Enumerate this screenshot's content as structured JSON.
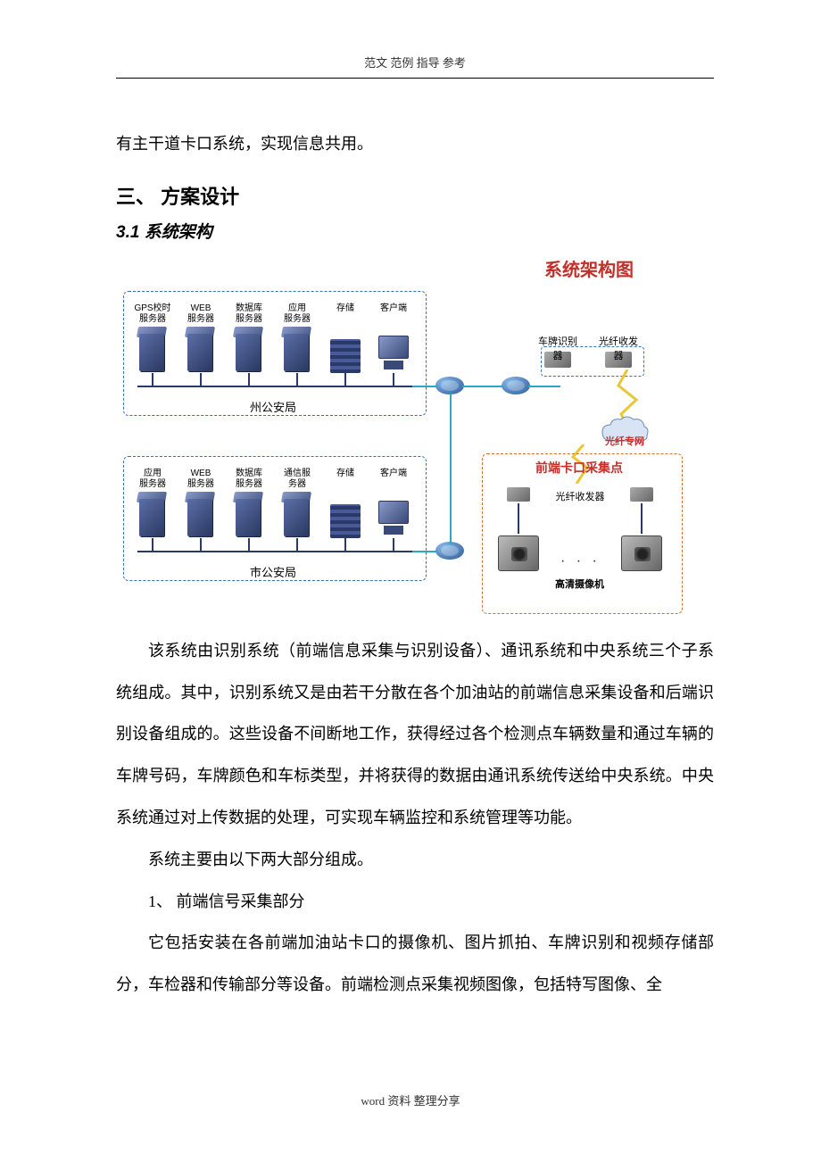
{
  "header": {
    "text": "范文 范例    指导 参考"
  },
  "footer": {
    "text": "word 资料  整理分享"
  },
  "content": {
    "lead_para": "有主干道卡口系统，实现信息共用。",
    "h1": "三、  方案设计",
    "h2": "3.1  系统架构",
    "para1": "该系统由识别系统（前端信息采集与识别设备）、通讯系统和中央系统三个子系统组成。其中，识别系统又是由若干分散在各个加油站的前端信息采集设备和后端识别设备组成的。这些设备不间断地工作，获得经过各个检测点车辆数量和通过车辆的车牌号码，车牌颜色和车标类型，并将获得的数据由通讯系统传送给中央系统。中央系统通过对上传数据的处理，可实现车辆监控和系统管理等功能。",
    "para2": "系统主要由以下两大部分组成。",
    "list1": "1、 前端信号采集部分",
    "para3": "它包括安装在各前端加油站卡口的摄像机、图片抓拍、车牌识别和视频存储部分，车检器和传输部分等设备。前端检测点采集视频图像，包括特写图像、全"
  },
  "diagram": {
    "title": "系统架构图",
    "zhou": {
      "label": "州公安局",
      "servers": [
        {
          "label": "GPS校时\n服务器"
        },
        {
          "label": "WEB\n服务器"
        },
        {
          "label": "数据库\n服务器"
        },
        {
          "label": "应用\n服务器"
        },
        {
          "label": "存储"
        },
        {
          "label": "客户端"
        }
      ]
    },
    "shi": {
      "label": "市公安局",
      "servers": [
        {
          "label": "应用\n服务器"
        },
        {
          "label": "WEB\n服务器"
        },
        {
          "label": "数据库\n服务器"
        },
        {
          "label": "通信服\n务器"
        },
        {
          "label": "存储"
        },
        {
          "label": "客户端"
        }
      ]
    },
    "lp_box": "车牌识别器",
    "fiber_tx": "光纤收发器",
    "fiber_net": "光纤专网",
    "front_label": "前端卡口采集点",
    "fiber_rx": "光纤收发器",
    "camera_label": "高清摄像机",
    "colors": {
      "title": "#c52f2a",
      "box_blue": "#3a6fb0",
      "box_orange": "#d07030",
      "server_dark": "#2a3860",
      "server_light": "#5b6fa8",
      "conn_cyan": "#2aa8c8",
      "zig_yellow": "#e8c838"
    }
  }
}
